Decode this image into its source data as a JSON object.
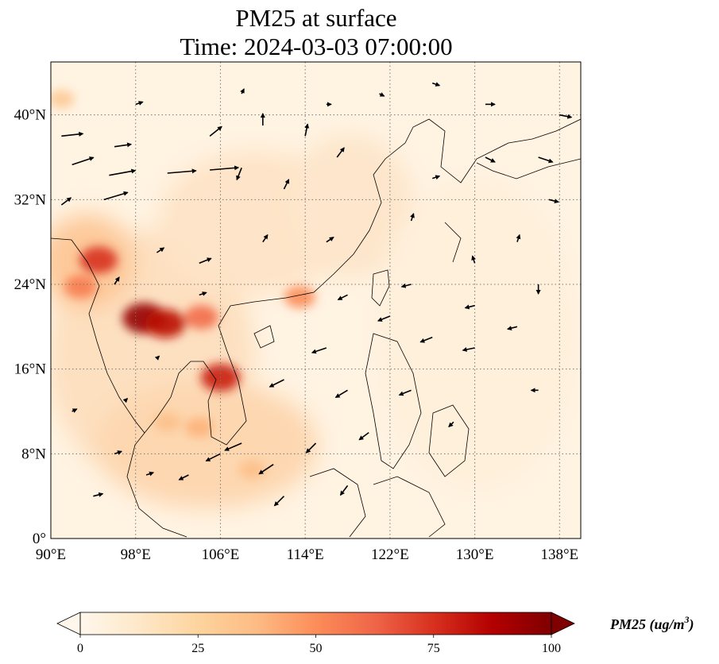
{
  "title": {
    "line1": "PM25 at surface",
    "line2": "Time: 2024-03-03 07:00:00"
  },
  "map": {
    "extent": {
      "lon": [
        90,
        140
      ],
      "lat": [
        0,
        45
      ]
    },
    "lon_ticks": [
      {
        "value": 90,
        "label": "90°E"
      },
      {
        "value": 98,
        "label": "98°E"
      },
      {
        "value": 106,
        "label": "106°E"
      },
      {
        "value": 114,
        "label": "114°E"
      },
      {
        "value": 122,
        "label": "122°E"
      },
      {
        "value": 130,
        "label": "130°E"
      },
      {
        "value": 138,
        "label": "138°E"
      }
    ],
    "lat_ticks": [
      {
        "value": 0,
        "label": "0°"
      },
      {
        "value": 8,
        "label": "8°N"
      },
      {
        "value": 16,
        "label": "16°N"
      },
      {
        "value": 24,
        "label": "24°N"
      },
      {
        "value": 32,
        "label": "32°N"
      },
      {
        "value": 40,
        "label": "40°N"
      }
    ],
    "gridlines": "dotted",
    "hotspots": [
      {
        "lon": 98.8,
        "lat": 20.8,
        "value": 95
      },
      {
        "lon": 100.8,
        "lat": 20.3,
        "value": 85
      },
      {
        "lon": 104.2,
        "lat": 20.9,
        "value": 60
      },
      {
        "lon": 106,
        "lat": 15.2,
        "value": 80
      },
      {
        "lon": 94.5,
        "lat": 26.3,
        "value": 75
      },
      {
        "lon": 92.8,
        "lat": 23.8,
        "value": 55
      },
      {
        "lon": 113.5,
        "lat": 22.8,
        "value": 50
      },
      {
        "lon": 104,
        "lat": 10.5,
        "value": 40
      },
      {
        "lon": 109,
        "lat": 6.5,
        "value": 35
      },
      {
        "lon": 101,
        "lat": 11,
        "value": 35
      },
      {
        "lon": 91,
        "lat": 41.5,
        "value": 30
      }
    ],
    "wind_vectors": [
      {
        "lon": 91,
        "lat": 38,
        "u": 9,
        "v": 1
      },
      {
        "lon": 92,
        "lat": 35.3,
        "u": 9,
        "v": 3
      },
      {
        "lon": 95.5,
        "lat": 34.3,
        "u": 11,
        "v": 2
      },
      {
        "lon": 101,
        "lat": 34.5,
        "u": 12,
        "v": 1
      },
      {
        "lon": 105,
        "lat": 34.8,
        "u": 12,
        "v": 1
      },
      {
        "lon": 95,
        "lat": 32,
        "u": 10,
        "v": 3
      },
      {
        "lon": 91,
        "lat": 31.5,
        "u": 4,
        "v": 3
      },
      {
        "lon": 96,
        "lat": 37,
        "u": 7,
        "v": 1
      },
      {
        "lon": 105,
        "lat": 38,
        "u": 5,
        "v": 4
      },
      {
        "lon": 108,
        "lat": 35,
        "u": -2,
        "v": -5
      },
      {
        "lon": 110,
        "lat": 39,
        "u": 0,
        "v": 5
      },
      {
        "lon": 112,
        "lat": 33,
        "u": 2,
        "v": 4
      },
      {
        "lon": 117,
        "lat": 36,
        "u": 3,
        "v": 4
      },
      {
        "lon": 100,
        "lat": 27,
        "u": 3,
        "v": 2
      },
      {
        "lon": 104,
        "lat": 26,
        "u": 5,
        "v": 2
      },
      {
        "lon": 110,
        "lat": 28,
        "u": 2,
        "v": 3
      },
      {
        "lon": 116,
        "lat": 28,
        "u": 3,
        "v": 2
      },
      {
        "lon": 96,
        "lat": 24,
        "u": 2,
        "v": 3
      },
      {
        "lon": 104,
        "lat": 23,
        "u": 3,
        "v": 1
      },
      {
        "lon": 118,
        "lat": 23,
        "u": -4,
        "v": -2
      },
      {
        "lon": 122,
        "lat": 21,
        "u": -5,
        "v": -2
      },
      {
        "lon": 126,
        "lat": 19,
        "u": -5,
        "v": -2
      },
      {
        "lon": 130,
        "lat": 18,
        "u": -5,
        "v": -1
      },
      {
        "lon": 134,
        "lat": 20,
        "u": -4,
        "v": -1
      },
      {
        "lon": 116,
        "lat": 18,
        "u": -6,
        "v": -2
      },
      {
        "lon": 112,
        "lat": 15,
        "u": -6,
        "v": -3
      },
      {
        "lon": 118,
        "lat": 14,
        "u": -5,
        "v": -3
      },
      {
        "lon": 124,
        "lat": 14,
        "u": -5,
        "v": -2
      },
      {
        "lon": 108,
        "lat": 9,
        "u": -7,
        "v": -3
      },
      {
        "lon": 111,
        "lat": 7,
        "u": -6,
        "v": -4
      },
      {
        "lon": 106,
        "lat": 8,
        "u": -6,
        "v": -3
      },
      {
        "lon": 103,
        "lat": 6,
        "u": -4,
        "v": -2
      },
      {
        "lon": 115,
        "lat": 9,
        "u": -4,
        "v": -4
      },
      {
        "lon": 112,
        "lat": 4,
        "u": -4,
        "v": -4
      },
      {
        "lon": 118,
        "lat": 5,
        "u": -3,
        "v": -4
      },
      {
        "lon": 96,
        "lat": 8,
        "u": 3,
        "v": 1
      },
      {
        "lon": 94,
        "lat": 4,
        "u": 4,
        "v": 1
      },
      {
        "lon": 99,
        "lat": 6,
        "u": 3,
        "v": 1
      },
      {
        "lon": 92,
        "lat": 12,
        "u": 2,
        "v": 1
      },
      {
        "lon": 130,
        "lat": 26,
        "u": -1,
        "v": 3
      },
      {
        "lon": 134,
        "lat": 28,
        "u": 1,
        "v": 3
      },
      {
        "lon": 136,
        "lat": 36,
        "u": 6,
        "v": -2
      },
      {
        "lon": 131,
        "lat": 41,
        "u": 4,
        "v": 0
      },
      {
        "lon": 126,
        "lat": 43,
        "u": 3,
        "v": -1
      },
      {
        "lon": 121,
        "lat": 42,
        "u": 2,
        "v": -1
      },
      {
        "lon": 138,
        "lat": 40,
        "u": 5,
        "v": -1
      },
      {
        "lon": 137,
        "lat": 32,
        "u": 4,
        "v": -1
      },
      {
        "lon": 126,
        "lat": 34,
        "u": 3,
        "v": 1
      },
      {
        "lon": 131,
        "lat": 36,
        "u": 4,
        "v": -2
      },
      {
        "lon": 124,
        "lat": 30,
        "u": 1,
        "v": 3
      },
      {
        "lon": 124,
        "lat": 24,
        "u": -4,
        "v": -1
      },
      {
        "lon": 130,
        "lat": 22,
        "u": -4,
        "v": -1
      },
      {
        "lon": 136,
        "lat": 24,
        "u": 0,
        "v": -4
      },
      {
        "lon": 136,
        "lat": 14,
        "u": -3,
        "v": 0
      },
      {
        "lon": 128,
        "lat": 11,
        "u": -2,
        "v": -2
      },
      {
        "lon": 120,
        "lat": 10,
        "u": -4,
        "v": -3
      },
      {
        "lon": 100,
        "lat": 17,
        "u": 1,
        "v": 1
      },
      {
        "lon": 97,
        "lat": 13,
        "u": 1,
        "v": 1
      },
      {
        "lon": 114,
        "lat": 38,
        "u": 1,
        "v": 5
      },
      {
        "lon": 98,
        "lat": 41,
        "u": 3,
        "v": 1
      },
      {
        "lon": 108,
        "lat": 42,
        "u": 1,
        "v": 2
      },
      {
        "lon": 116,
        "lat": 41,
        "u": 2,
        "v": 0
      }
    ]
  },
  "colorbar": {
    "colormap": "OrRd",
    "min": 0,
    "max": 100,
    "ticks": [
      {
        "value": 0,
        "label": "0"
      },
      {
        "value": 25,
        "label": "25"
      },
      {
        "value": 50,
        "label": "50"
      },
      {
        "value": 75,
        "label": "75"
      },
      {
        "value": 100,
        "label": "100"
      }
    ],
    "label": "PM25 (ug/m",
    "label_sup": "3",
    "label_end": ")",
    "extend": "both",
    "colors": [
      "#fff7ec",
      "#fee8c8",
      "#fdd49e",
      "#fdbb84",
      "#fc8d59",
      "#ef6548",
      "#d7301f",
      "#b30000",
      "#7f0000"
    ]
  }
}
